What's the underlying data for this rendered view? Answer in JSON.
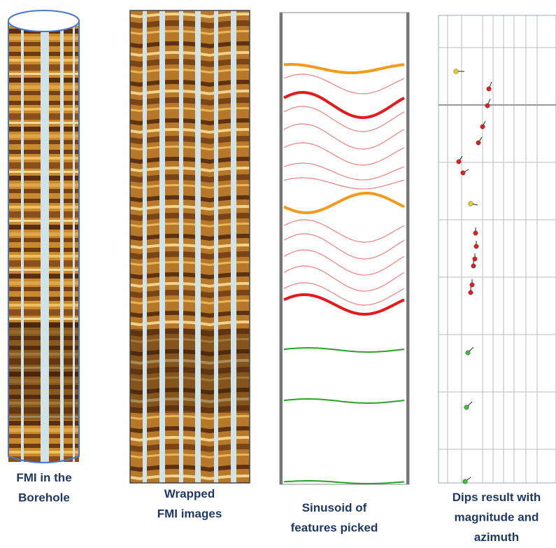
{
  "captions": [
    {
      "lines": [
        "FMI in the",
        "Borehole"
      ]
    },
    {
      "lines": [
        "Wrapped",
        "FMI images"
      ]
    },
    {
      "lines": [
        "Sinusoid of",
        "features picked"
      ]
    },
    {
      "lines": [
        "Dips result with",
        "magnitude and",
        "azimuth"
      ]
    }
  ]
}
